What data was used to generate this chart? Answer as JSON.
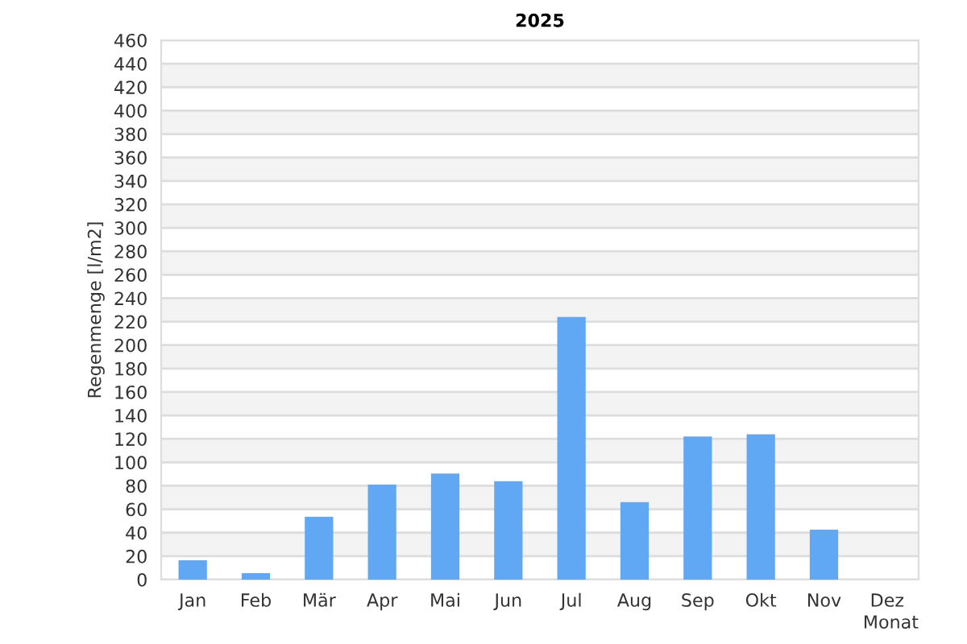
{
  "chart_data": {
    "type": "bar",
    "title": "2025",
    "xlabel": "Monat",
    "ylabel": "Regenmenge [l/m2]",
    "categories": [
      "Jan",
      "Feb",
      "Mär",
      "Apr",
      "Mai",
      "Jun",
      "Jul",
      "Aug",
      "Sep",
      "Okt",
      "Nov",
      "Dez"
    ],
    "values": [
      16.5,
      5.5,
      53.5,
      81,
      90.5,
      84,
      224,
      66,
      122,
      124,
      42.5,
      null
    ],
    "color": "#60a8f4",
    "ylim": [
      0,
      460
    ],
    "yticks": [
      0,
      20,
      40,
      60,
      80,
      100,
      120,
      140,
      160,
      180,
      200,
      220,
      240,
      260,
      280,
      300,
      320,
      340,
      360,
      380,
      400,
      420,
      440,
      460
    ],
    "grid": "y"
  }
}
